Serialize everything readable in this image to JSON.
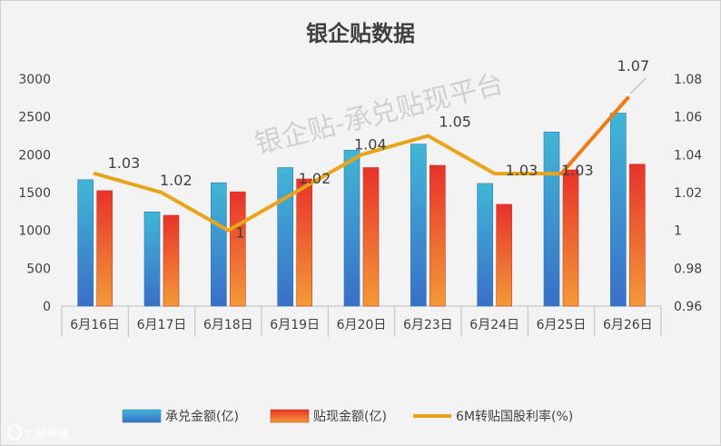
{
  "chart_data": {
    "type": "bar",
    "title": "银企贴数据",
    "categories": [
      "6月16日",
      "6月17日",
      "6月18日",
      "6月19日",
      "6月20日",
      "6月23日",
      "6月24日",
      "6月25日",
      "6月26日"
    ],
    "series": [
      {
        "name": "承兑金额(亿)",
        "type": "bar",
        "axis": "left",
        "values": [
          1670,
          1245,
          1630,
          1830,
          2060,
          2140,
          1620,
          2300,
          2550
        ]
      },
      {
        "name": "贴现金额(亿)",
        "type": "bar",
        "axis": "left",
        "values": [
          1525,
          1200,
          1510,
          1680,
          1830,
          1860,
          1345,
          1800,
          1875
        ]
      },
      {
        "name": "6M转贴国股利率(%)",
        "type": "line",
        "axis": "right",
        "values": [
          1.03,
          1.02,
          1.0,
          1.02,
          1.04,
          1.05,
          1.03,
          1.03,
          1.07
        ],
        "labels": [
          "1.03",
          "1.02",
          "1",
          "1.02",
          "1.04",
          "1.05",
          "1.03",
          "1.03",
          "1.07"
        ]
      }
    ],
    "y_left": {
      "min": 0,
      "max": 3000,
      "ticks": [
        "0",
        "500",
        "1000",
        "1500",
        "2000",
        "2500",
        "3000"
      ]
    },
    "y_right": {
      "min": 0.96,
      "max": 1.08,
      "ticks": [
        "0.96",
        "0.98",
        "1",
        "1.02",
        "1.04",
        "1.06",
        "1.08"
      ]
    },
    "legend_position": "bottom",
    "grid": false,
    "colors": {
      "bar1": "#3aa6c8",
      "bar2": "#e8442a",
      "line": "#e8a51a",
      "line_last": "#f07a14"
    }
  },
  "watermark": "银企贴-承兑贴现平台",
  "footer_logo": "六敏路演"
}
